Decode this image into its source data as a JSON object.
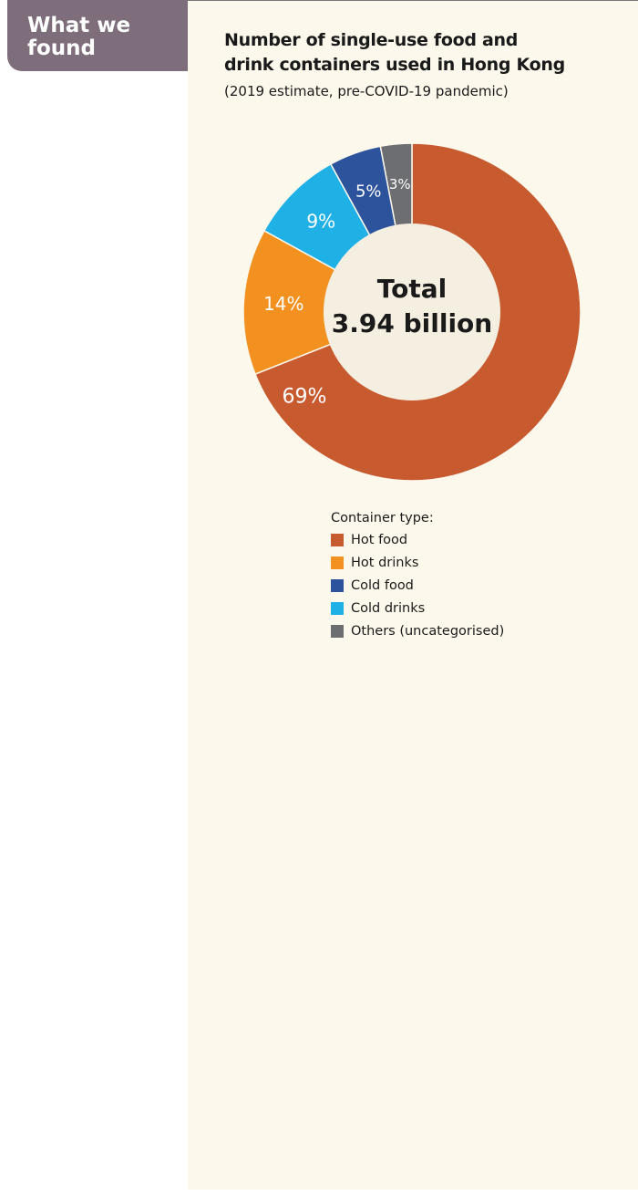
{
  "tab": {
    "line1": "What we",
    "line2": "found"
  },
  "panel": {
    "title_line1": "Number of single-use food and",
    "title_line2": "drink containers used in Hong Kong",
    "subtitle": "(2019 estimate, pre-COVID-19 pandemic)"
  },
  "chart_data": {
    "type": "pie",
    "title": "Number of single-use food and drink containers used in Hong Kong",
    "subtitle": "(2019 estimate, pre-COVID-19 pandemic)",
    "center_line1": "Total",
    "center_line2": "3.94 billion",
    "legend_title": "Container type:",
    "slices": [
      {
        "name": "Hot food",
        "value": 69,
        "label": "69%",
        "color": "#c85a2f"
      },
      {
        "name": "Hot drinks",
        "value": 14,
        "label": "14%",
        "color": "#f29020"
      },
      {
        "name": "Cold drinks",
        "value": 9,
        "label": "9%",
        "color": "#1fb0e6"
      },
      {
        "name": "Cold food",
        "value": 5,
        "label": "5%",
        "color": "#2c539c"
      },
      {
        "name": "Others (uncategorised)",
        "value": 3,
        "label": "3%",
        "color": "#6d6e71"
      }
    ],
    "legend": [
      {
        "name": "Hot food",
        "color": "#c85a2f"
      },
      {
        "name": "Hot drinks",
        "color": "#f29020"
      },
      {
        "name": "Cold food",
        "color": "#2c539c"
      },
      {
        "name": "Cold drinks",
        "color": "#1fb0e6"
      },
      {
        "name": "Others (uncategorised)",
        "color": "#6d6e71"
      }
    ]
  }
}
